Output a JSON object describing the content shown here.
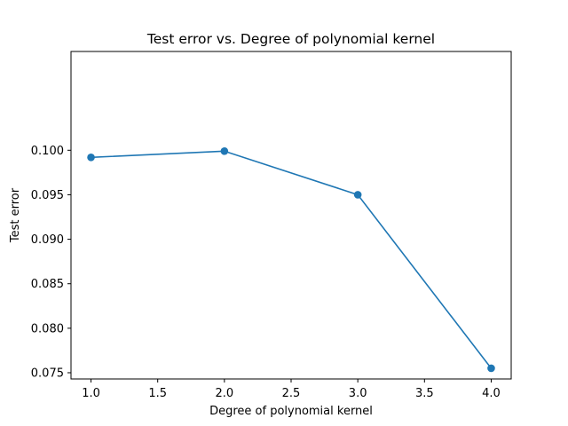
{
  "chart_data": {
    "type": "line",
    "title": "Test error vs. Degree of polynomial kernel",
    "xlabel": "Degree of polynomial kernel",
    "ylabel": "Test error",
    "series": [
      {
        "x": [
          1.0,
          2.0,
          3.0,
          4.0
        ],
        "values": [
          0.0992,
          0.0999,
          0.095,
          0.0755
        ],
        "color": "#1f77b4",
        "marker": "circle"
      }
    ],
    "xlim": [
      0.85,
      4.15
    ],
    "ylim": [
      0.0743,
      0.1111
    ],
    "xticks": [
      1.0,
      1.5,
      2.0,
      2.5,
      3.0,
      3.5,
      4.0
    ],
    "xtick_labels": [
      "1.0",
      "1.5",
      "2.0",
      "2.5",
      "3.0",
      "3.5",
      "4.0"
    ],
    "yticks": [
      0.075,
      0.08,
      0.085,
      0.09,
      0.095,
      0.1
    ],
    "ytick_labels": [
      "0.075",
      "0.080",
      "0.085",
      "0.090",
      "0.095",
      "0.100"
    ],
    "grid": false,
    "legend": false
  }
}
